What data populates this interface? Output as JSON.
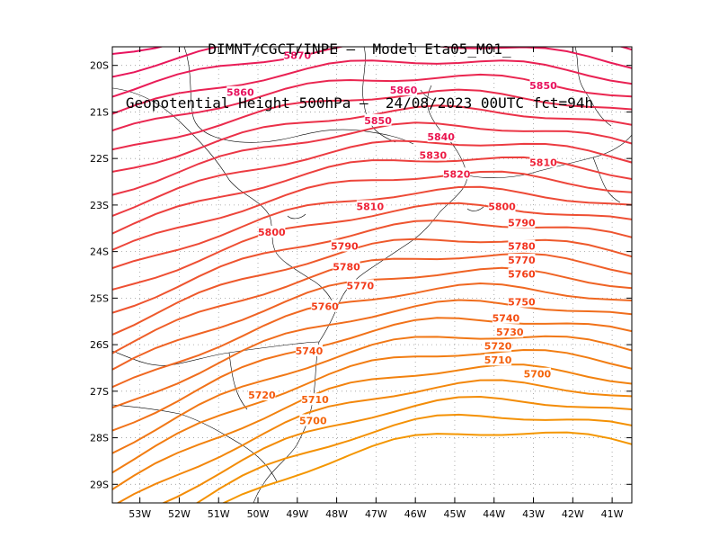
{
  "title": {
    "line1": "DIMNT/CGCT/INPE –  Model Eta05_M01_",
    "line2": "Geopotential Height 500hPa –  24/08/2023 00UTC fct=94h"
  },
  "map": {
    "lon_range": [
      -53.7,
      -40.5
    ],
    "lat_range": [
      -29.4,
      -19.6
    ],
    "lat_ticks": [
      "20S",
      "21S",
      "22S",
      "23S",
      "24S",
      "25S",
      "26S",
      "27S",
      "28S",
      "29S"
    ],
    "lon_ticks": [
      "53W",
      "52W",
      "51W",
      "50W",
      "49W",
      "48W",
      "47W",
      "46W",
      "45W",
      "44W",
      "43W",
      "42W",
      "41W"
    ],
    "grid": true
  },
  "contour_labels": [
    {
      "value": "5870",
      "lon": -49.0,
      "lat": -19.8,
      "color": "#e8125e"
    },
    {
      "value": "5860",
      "lon": -50.45,
      "lat": -20.6,
      "color": "#e8125e"
    },
    {
      "value": "5860",
      "lon": -46.3,
      "lat": -20.55,
      "color": "#e8125e"
    },
    {
      "value": "5850",
      "lon": -42.75,
      "lat": -20.45,
      "color": "#e8125e"
    },
    {
      "value": "5850",
      "lon": -46.95,
      "lat": -21.2,
      "color": "#ea1650"
    },
    {
      "value": "5840",
      "lon": -45.35,
      "lat": -21.55,
      "color": "#ea1650"
    },
    {
      "value": "5830",
      "lon": -45.55,
      "lat": -21.95,
      "color": "#ec1c44"
    },
    {
      "value": "5820",
      "lon": -44.95,
      "lat": -22.35,
      "color": "#ec1c44"
    },
    {
      "value": "5810",
      "lon": -42.75,
      "lat": -22.1,
      "color": "#ee2238"
    },
    {
      "value": "5810",
      "lon": -47.15,
      "lat": -23.05,
      "color": "#ee2238"
    },
    {
      "value": "5800",
      "lon": -43.8,
      "lat": -23.05,
      "color": "#f0282c"
    },
    {
      "value": "5800",
      "lon": -49.65,
      "lat": -23.6,
      "color": "#f0282c"
    },
    {
      "value": "5790",
      "lon": -43.3,
      "lat": -23.4,
      "color": "#f02e26"
    },
    {
      "value": "5790",
      "lon": -47.8,
      "lat": -23.9,
      "color": "#f02e26"
    },
    {
      "value": "5780",
      "lon": -43.3,
      "lat": -23.9,
      "color": "#f23420"
    },
    {
      "value": "5780",
      "lon": -47.75,
      "lat": -24.35,
      "color": "#f23420"
    },
    {
      "value": "5770",
      "lon": -43.3,
      "lat": -24.2,
      "color": "#f23a1c"
    },
    {
      "value": "5770",
      "lon": -47.4,
      "lat": -24.75,
      "color": "#f23a1c"
    },
    {
      "value": "5760",
      "lon": -43.3,
      "lat": -24.5,
      "color": "#f24018"
    },
    {
      "value": "5760",
      "lon": -48.3,
      "lat": -25.2,
      "color": "#f24018"
    },
    {
      "value": "5750",
      "lon": -43.3,
      "lat": -25.1,
      "color": "#f44814"
    },
    {
      "value": "5740",
      "lon": -43.7,
      "lat": -25.45,
      "color": "#f44e12"
    },
    {
      "value": "5740",
      "lon": -48.7,
      "lat": -26.15,
      "color": "#f44e12"
    },
    {
      "value": "5730",
      "lon": -43.6,
      "lat": -25.75,
      "color": "#f45410"
    },
    {
      "value": "5720",
      "lon": -43.9,
      "lat": -26.05,
      "color": "#f45a0e"
    },
    {
      "value": "5720",
      "lon": -49.9,
      "lat": -27.1,
      "color": "#f45a0e"
    },
    {
      "value": "5710",
      "lon": -43.9,
      "lat": -26.35,
      "color": "#f4600c"
    },
    {
      "value": "5710",
      "lon": -48.55,
      "lat": -27.2,
      "color": "#f4600c"
    },
    {
      "value": "5700",
      "lon": -42.9,
      "lat": -26.65,
      "color": "#f4660a"
    },
    {
      "value": "5700",
      "lon": -48.6,
      "lat": -27.65,
      "color": "#f4660a"
    }
  ]
}
